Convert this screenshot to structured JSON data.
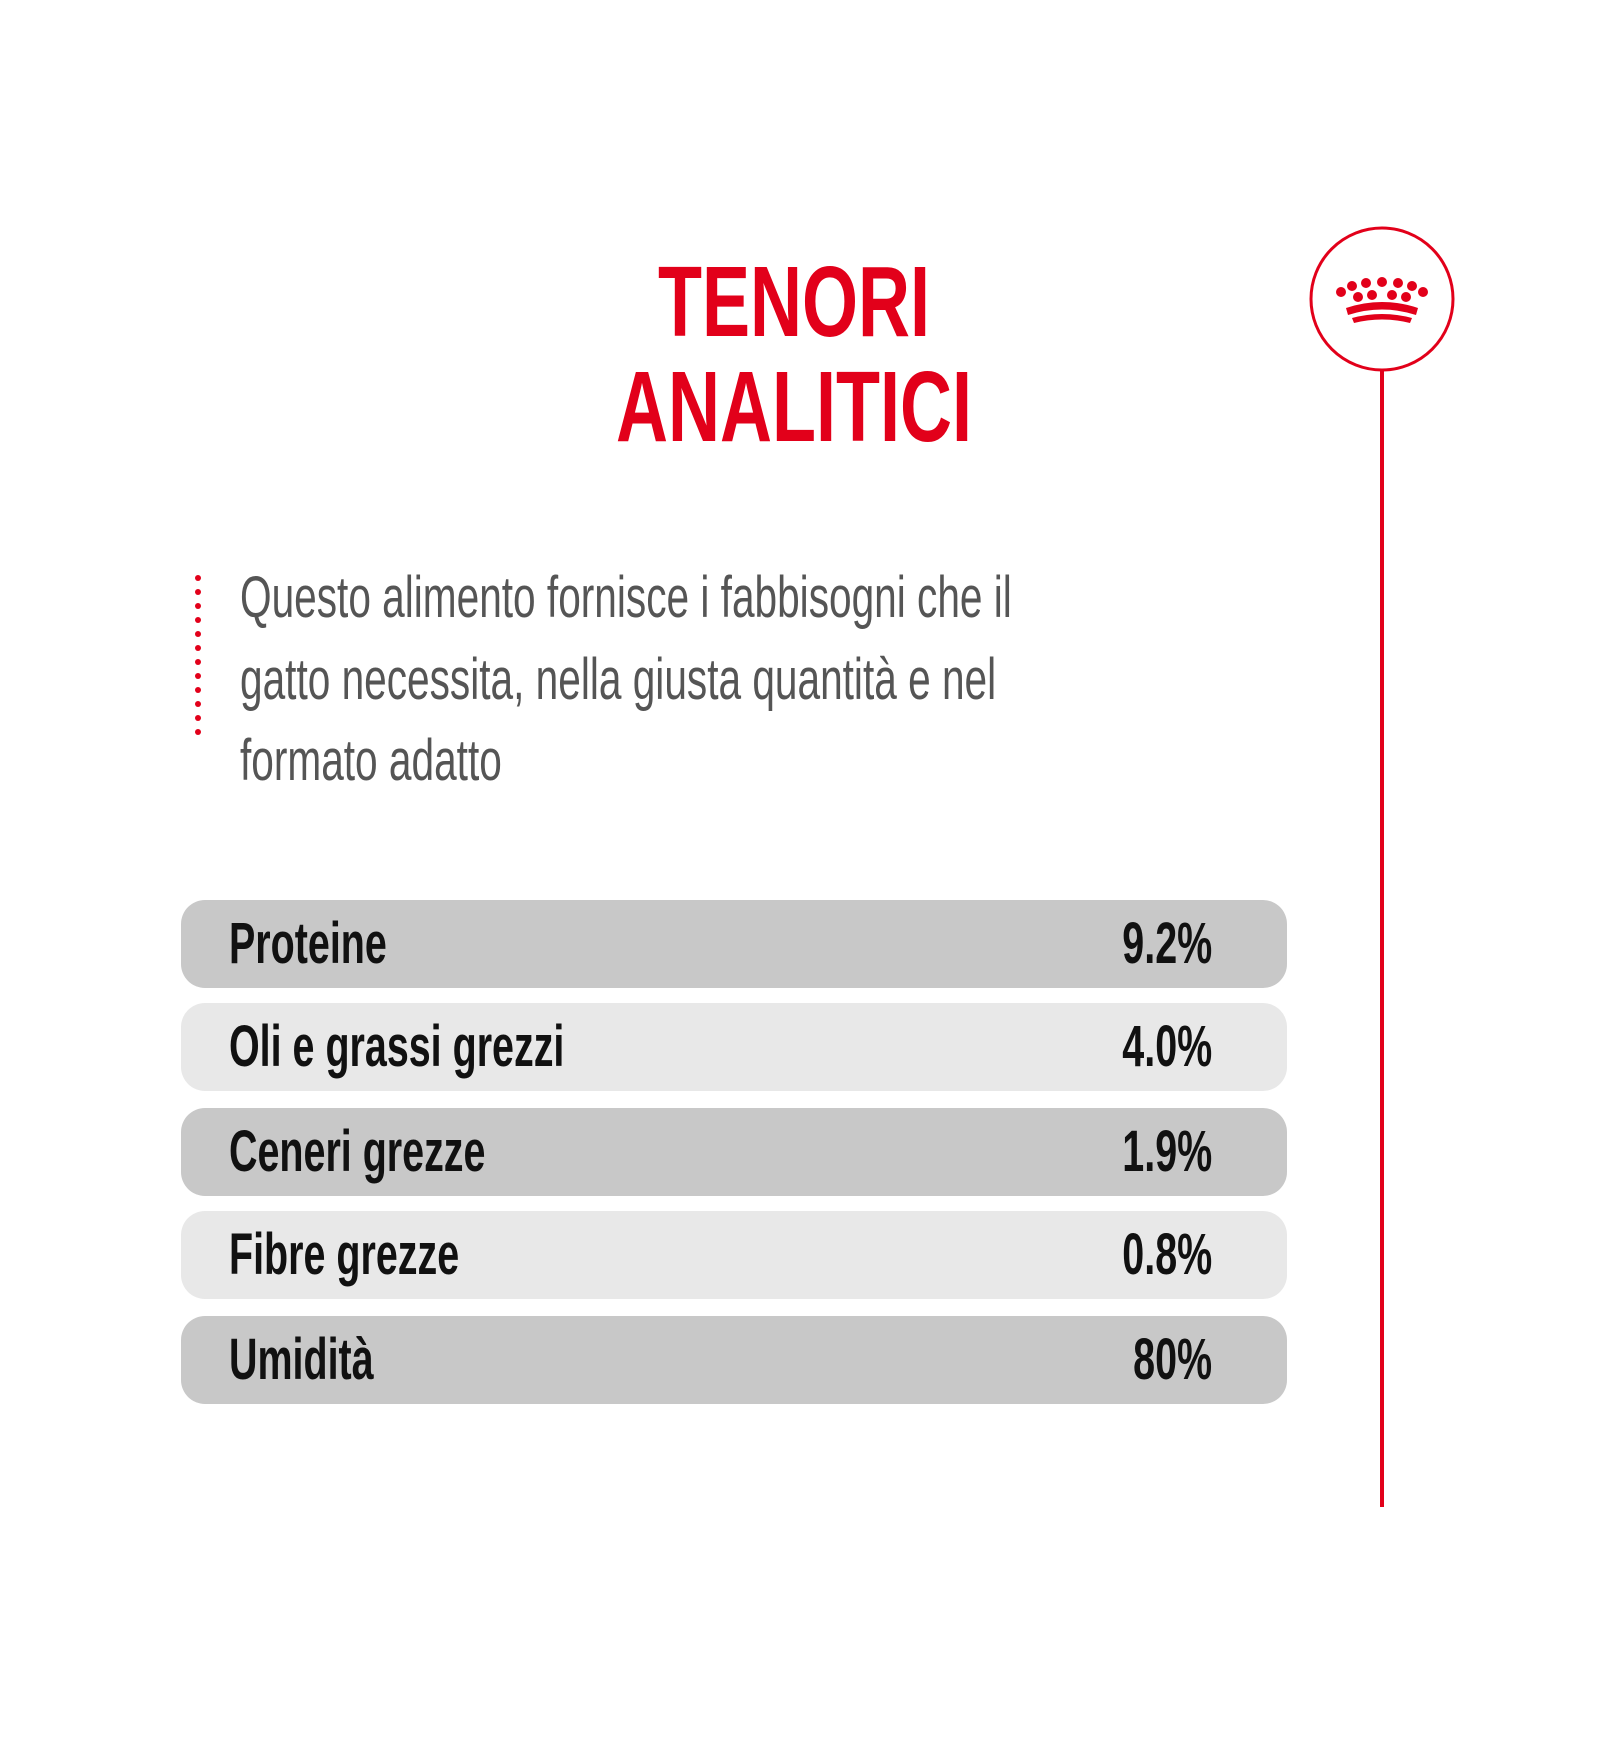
{
  "header": {
    "title": [
      "TENORI",
      "ANALITICI"
    ]
  },
  "description": [
    "Questo alimento fornisce i fabbisogni che il",
    "gatto necessita, nella giusta quantità e nel",
    "formato adatto"
  ],
  "table": {
    "rows": [
      [
        "Proteine",
        "9.2%"
      ],
      [
        "Oli e grassi grezzi",
        "4.0%"
      ],
      [
        "Ceneri grezze",
        "1.9%"
      ],
      [
        "Fibre grezze",
        "0.8%"
      ],
      [
        "Umidità",
        "80%"
      ]
    ]
  }
}
